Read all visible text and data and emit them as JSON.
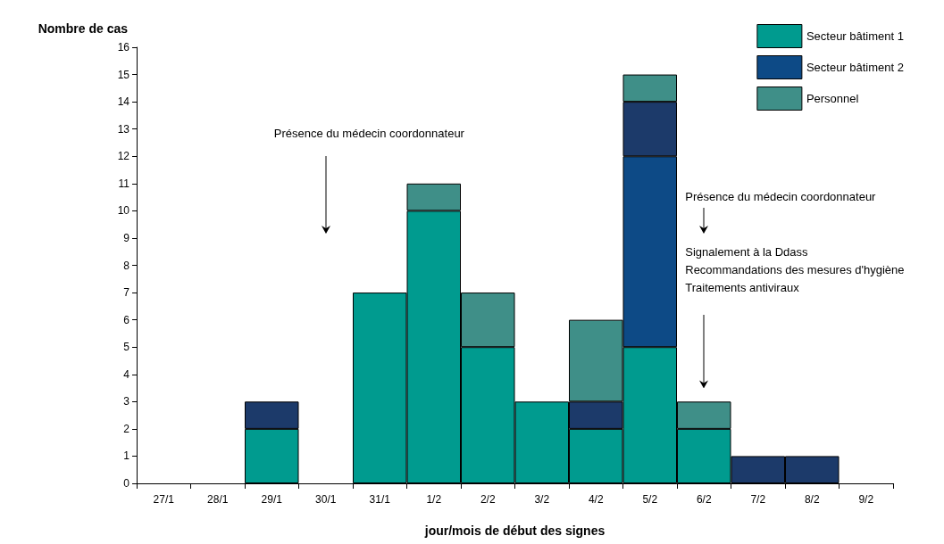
{
  "chart_data": {
    "type": "bar",
    "stacked": true,
    "xlabel": "jour/mois de début des signes",
    "ylabel": "Nombre de cas",
    "categories": [
      "27/1",
      "28/1",
      "29/1",
      "30/1",
      "31/1",
      "1/2",
      "2/2",
      "3/2",
      "4/2",
      "5/2",
      "6/2",
      "7/2",
      "8/2",
      "9/2"
    ],
    "series": [
      {
        "name": "Secteur bâtiment 1",
        "color": "#009b8f",
        "values": [
          0,
          0,
          2,
          0,
          7,
          10,
          5,
          3,
          2,
          5,
          2,
          0,
          0,
          0
        ]
      },
      {
        "name": "Secteur bâtiment 2",
        "color": "#0d4a86",
        "values": [
          0,
          0,
          0,
          0,
          0,
          0,
          0,
          0,
          0,
          7,
          0,
          0,
          0,
          0
        ]
      },
      {
        "color": "#1c3a6a",
        "values": [
          0,
          0,
          1,
          0,
          0,
          0,
          0,
          0,
          1,
          2,
          0,
          1,
          1,
          0
        ]
      },
      {
        "name": "Personnel",
        "color": "#3f8f88",
        "values": [
          0,
          0,
          0,
          0,
          0,
          1,
          2,
          0,
          3,
          1,
          1,
          0,
          0,
          0
        ]
      }
    ],
    "ylim": [
      0,
      16
    ],
    "yticks": [
      0,
      1,
      2,
      3,
      4,
      5,
      6,
      7,
      8,
      9,
      10,
      11,
      12,
      13,
      14,
      15,
      16
    ],
    "grid": false,
    "legend": "top right",
    "annotations": [
      "Présence du médecin coordonnateur",
      "Présence du médecin coordonnateur",
      "Signalement à la Ddass\nRecommandations des mesures d'hygiène\nTraitements antiviraux"
    ]
  }
}
